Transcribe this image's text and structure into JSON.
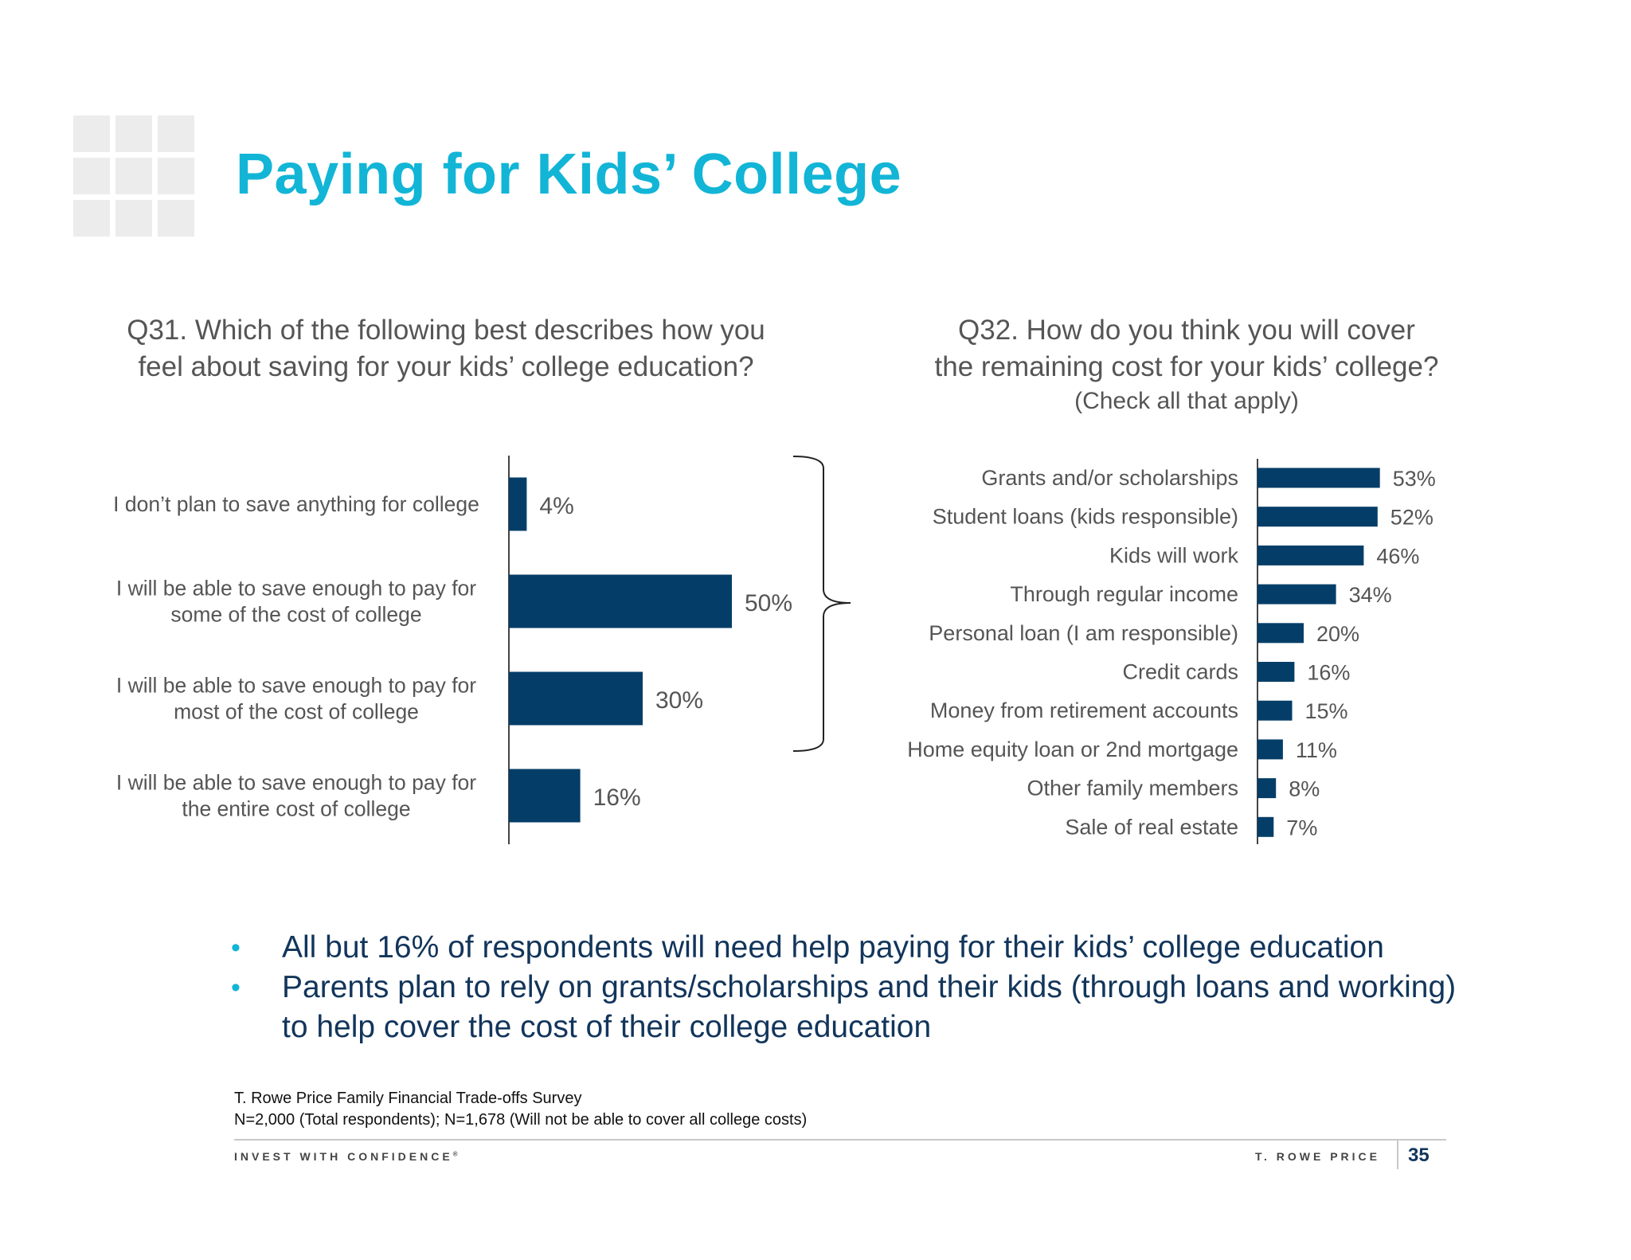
{
  "title": "Paying for Kids’ College",
  "bar_color": "#043e68",
  "title_color": "#12b5d6",
  "chart_data": [
    {
      "type": "bar",
      "orientation": "horizontal",
      "title_lines": [
        "Q31. Which of the following best describes how you",
        "feel about saving for your kids’ college education?"
      ],
      "categories": [
        [
          "I don’t plan to save anything for college"
        ],
        [
          "I will be able to save enough to pay for",
          "some of the cost of college"
        ],
        [
          "I will be able to save enough to pay for",
          "most of the cost of college"
        ],
        [
          "I will be able to save enough to pay for",
          "the entire cost of college"
        ]
      ],
      "values": [
        4,
        50,
        30,
        16
      ],
      "value_labels": [
        "4%",
        "50%",
        "30%",
        "16%"
      ],
      "xlim": [
        0,
        100
      ]
    },
    {
      "type": "bar",
      "orientation": "horizontal",
      "title_lines": [
        "Q32. How do you think you will cover",
        "the remaining cost for your kids’ college?"
      ],
      "subtitle": "(Check all that apply)",
      "categories": [
        "Grants and/or scholarships",
        "Student loans (kids responsible)",
        "Kids will work",
        "Through regular income",
        "Personal loan (I am responsible)",
        "Credit cards",
        "Money from retirement accounts",
        "Home equity loan or 2nd mortgage",
        "Other family members",
        "Sale of real estate"
      ],
      "values": [
        53,
        52,
        46,
        34,
        20,
        16,
        15,
        11,
        8,
        7
      ],
      "value_labels": [
        "53%",
        "52%",
        "46%",
        "34%",
        "20%",
        "16%",
        "15%",
        "11%",
        "8%",
        "7%"
      ],
      "xlim": [
        0,
        100
      ]
    }
  ],
  "bullets": [
    "All but 16% of respondents will need help paying for their kids’ college education",
    "Parents plan to rely on grants/scholarships and their kids (through loans and working) to help cover the cost of their college education"
  ],
  "bullet_marker": "•",
  "source_lines": [
    "T. Rowe Price Family Financial Trade-offs Survey",
    "N=2,000 (Total respondents); N=1,678 (Will not be able to cover all college costs)"
  ],
  "footer": {
    "tagline": "INVEST WITH CONFIDENCE",
    "tagline_mark": "®",
    "brand": "T. ROWE PRICE",
    "page_number": "35"
  }
}
